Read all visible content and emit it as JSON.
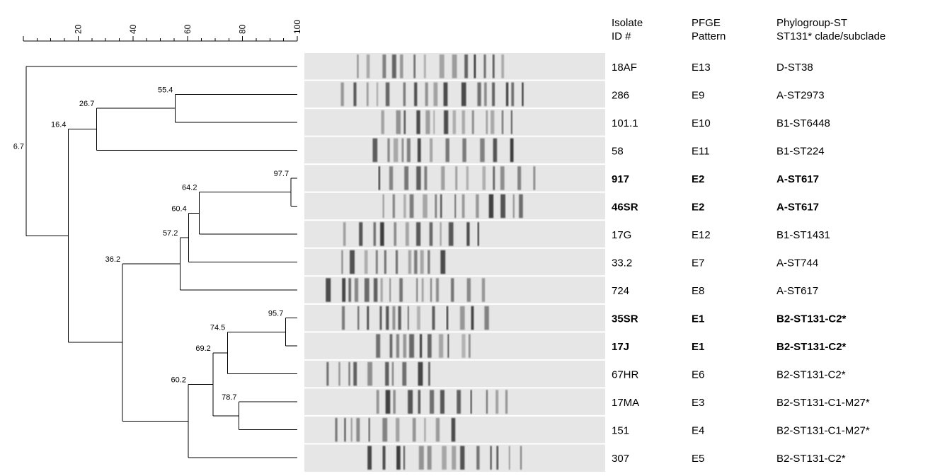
{
  "scale": {
    "tick_labels": [
      "20",
      "40",
      "60",
      "80",
      "100"
    ]
  },
  "headers": {
    "isolate": [
      "Isolate",
      "ID #"
    ],
    "pfge": [
      "PFGE",
      "Pattern"
    ],
    "phylo": [
      "Phylogroup-ST",
      "ST131* clade/subclade"
    ]
  },
  "rows": [
    {
      "id": "18AF",
      "pattern": "E13",
      "phylo": "D-ST38",
      "bold": false
    },
    {
      "id": "286",
      "pattern": "E9",
      "phylo": "A-ST2973",
      "bold": false
    },
    {
      "id": "101.1",
      "pattern": "E10",
      "phylo": "B1-ST6448",
      "bold": false
    },
    {
      "id": "58",
      "pattern": "E11",
      "phylo": "B1-ST224",
      "bold": false
    },
    {
      "id": "917",
      "pattern": "E2",
      "phylo": "A-ST617",
      "bold": true
    },
    {
      "id": "46SR",
      "pattern": "E2",
      "phylo": "A-ST617",
      "bold": true
    },
    {
      "id": "17G",
      "pattern": "E12",
      "phylo": "B1-ST1431",
      "bold": false
    },
    {
      "id": "33.2",
      "pattern": "E7",
      "phylo": "A-ST744",
      "bold": false
    },
    {
      "id": "724",
      "pattern": "E8",
      "phylo": "A-ST617",
      "bold": false
    },
    {
      "id": "35SR",
      "pattern": "E1",
      "phylo": "B2-ST131-C2*",
      "bold": true
    },
    {
      "id": "17J",
      "pattern": "E1",
      "phylo": "B2-ST131-C2*",
      "bold": true
    },
    {
      "id": "67HR",
      "pattern": "E6",
      "phylo": "B2-ST131-C2*",
      "bold": false
    },
    {
      "id": "17MA",
      "pattern": "E3",
      "phylo": "B2-ST131-C1-M27*",
      "bold": false
    },
    {
      "id": "151",
      "pattern": "E4",
      "phylo": "B2-ST131-C1-M27*",
      "bold": false
    },
    {
      "id": "307",
      "pattern": "E5",
      "phylo": "B2-ST131-C2*",
      "bold": false
    }
  ],
  "nodes": [
    {
      "label": "6.7"
    },
    {
      "label": "26.7"
    },
    {
      "label": "55.4"
    },
    {
      "label": "16.4"
    },
    {
      "label": "36.2"
    },
    {
      "label": "57.2"
    },
    {
      "label": "60.4"
    },
    {
      "label": "64.2"
    },
    {
      "label": "97.7"
    },
    {
      "label": "60.2"
    },
    {
      "label": "69.2"
    },
    {
      "label": "74.5"
    },
    {
      "label": "95.7"
    },
    {
      "label": "78.7"
    }
  ],
  "colors": {
    "gel_background": "#e6e6e6",
    "band_color": "#1a1a1a",
    "lane_separator": "#ffffff"
  }
}
